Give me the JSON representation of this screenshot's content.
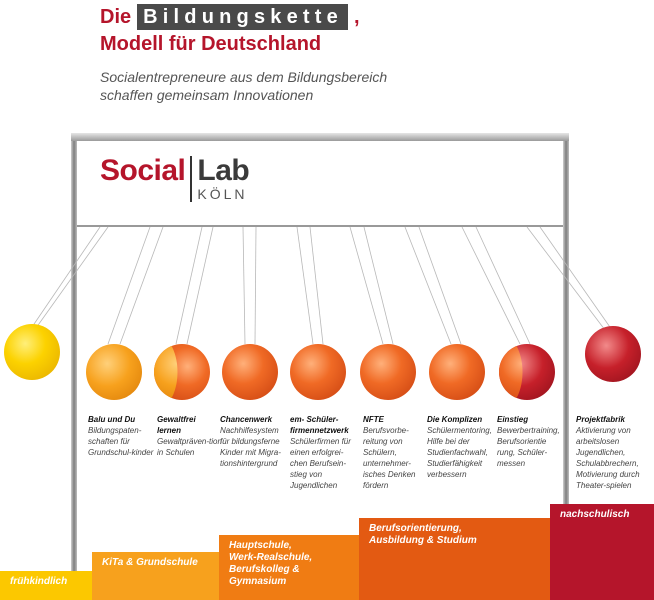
{
  "title": {
    "prefix": "Die",
    "boxed": "Bildungskette",
    "comma": ",",
    "line2": "Modell für Deutschland"
  },
  "subtitle": {
    "line1": "Socialentrepreneure aus dem Bildungsbereich",
    "line2": "schaffen gemeinsam Innovationen"
  },
  "logo": {
    "social": "Social",
    "lab": "Lab",
    "city": "KÖLN"
  },
  "balls": [
    {
      "id": "yellow",
      "color": "yellow"
    },
    {
      "id": "balu",
      "color": "orange"
    },
    {
      "id": "gewaltfrei",
      "color": "split-orange-red"
    },
    {
      "id": "chancenwerk",
      "color": "red-orange"
    },
    {
      "id": "em",
      "color": "red-orange"
    },
    {
      "id": "nfte",
      "color": "red-orange"
    },
    {
      "id": "komplizen",
      "color": "red-orange"
    },
    {
      "id": "einstieg",
      "color": "split-red-dark"
    },
    {
      "id": "projektfabrik",
      "color": "dark-red"
    }
  ],
  "projects": [
    {
      "name": "Balu und Du",
      "text": "Bildungspaten-schaften für Grundschul-kinder"
    },
    {
      "name": "Gewaltfrei lernen",
      "text": "Gewaltpräven-tion in Schulen"
    },
    {
      "name": "Chancenwerk",
      "text": "Nachhilfesystem für bildungsferne Kinder mit Migra-tionshintergrund"
    },
    {
      "name": "em- Schüler-firmennetzwerk",
      "text": "Schülerfirmen für einen erfolgrei-chen Berufsein-stieg von Jugendlichen"
    },
    {
      "name": "NFTE",
      "text": "Berufsvorbe-reitung von Schülern, unternehmer-isches Denken fördern"
    },
    {
      "name": "Die Komplizen",
      "text": "Schülermentoring, Hilfe bei der Studienfachwahl, Studierfähigkeit verbessern"
    },
    {
      "name": "Einstieg",
      "text": "Bewerbertraining, Berufsorientie rung, Schüler-messen"
    },
    {
      "name": "Projektfabrik",
      "text": "Aktivierung von arbeitslosen Jugendlichen, Schulabbrechern, Motivierung durch Theater-spielen"
    }
  ],
  "stages": [
    {
      "label": "frühkindlich",
      "color": "#fcc800"
    },
    {
      "label": "KiTa & Grundschule",
      "color": "#f7a11d"
    },
    {
      "label": "Hauptschule, Werk-Realschule, Berufskolleg & Gymnasium",
      "color": "#f07c13"
    },
    {
      "label": "Berufsorientierung, Ausbildung & Studium",
      "color": "#e35a12"
    },
    {
      "label": "nachschulisch",
      "color": "#b5152b"
    }
  ],
  "colors": {
    "brand_red": "#b5152b",
    "frame_grey": "#9a9a9a",
    "box_grey": "#4a4a4a"
  }
}
